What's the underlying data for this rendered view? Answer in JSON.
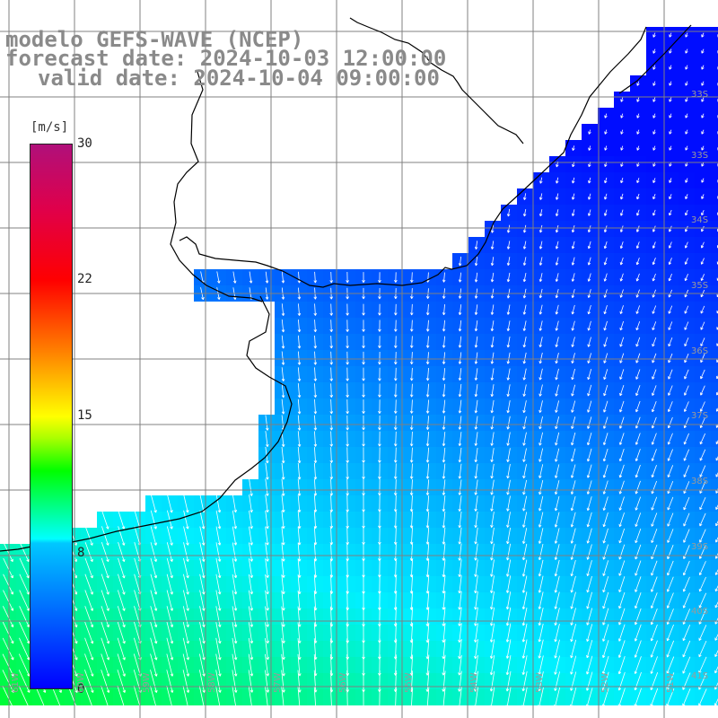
{
  "title": {
    "line1": "modelo GEFS-WAVE (NCEP)",
    "line2": "forecast date: 2024-10-03 12:00:00",
    "line3": "valid date: 2024-10-04 09:00:00"
  },
  "colorbar": {
    "unit": "[m/s]",
    "min": 0,
    "max": 30,
    "ticks": [
      "30",
      "22",
      "15",
      "8",
      "0"
    ]
  },
  "grid": {
    "lat_labels": [
      "33S",
      "34S",
      "35S",
      "36S",
      "37S",
      "38S",
      "39S",
      "40S",
      "41S"
    ],
    "lon_labels": [
      "61W",
      "60W",
      "59W",
      "58W",
      "57W",
      "56W",
      "55W",
      "54W",
      "53W",
      "52W",
      "51W"
    ]
  },
  "colors": {
    "land": "#ffffff",
    "grid": "#808080",
    "coast": "#000000",
    "arrows": "#ffffff",
    "title": "#8a8a8a"
  }
}
